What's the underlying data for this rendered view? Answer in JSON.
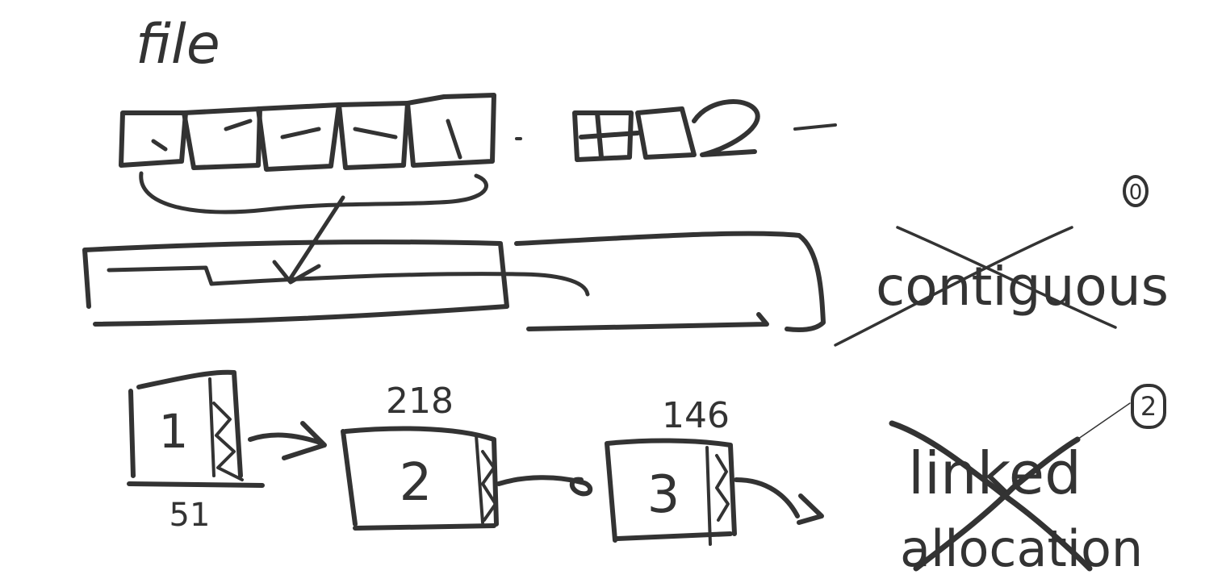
{
  "ink_color": "#333333",
  "background": "#ffffff",
  "labels": {
    "file": "file",
    "contiguous": "contiguous",
    "contiguous_number": "0",
    "linked": "linked",
    "allocation": "allocation",
    "linked_number": "2"
  },
  "blocks": [
    {
      "label": "1",
      "address": "51"
    },
    {
      "label": "2",
      "address": "218"
    },
    {
      "label": "3",
      "address": "146"
    }
  ]
}
